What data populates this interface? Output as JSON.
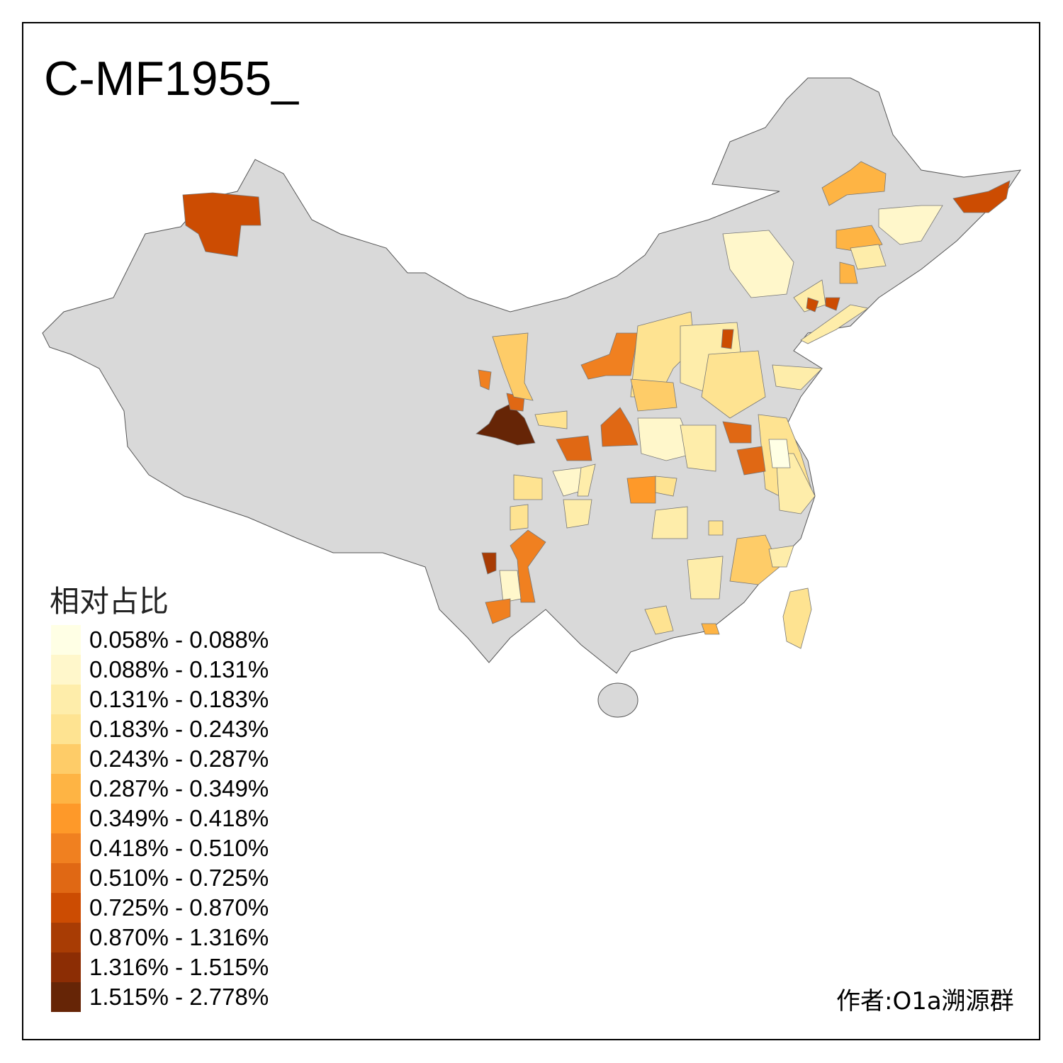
{
  "title": "C-MF1955_",
  "legend": {
    "title": "相对占比",
    "classes": [
      {
        "label": "0.058% - 0.088%",
        "color": "#FFFFE5"
      },
      {
        "label": "0.088% - 0.131%",
        "color": "#FFF7CB"
      },
      {
        "label": "0.131% - 0.183%",
        "color": "#FEEDAA"
      },
      {
        "label": "0.183% - 0.243%",
        "color": "#FEE391"
      },
      {
        "label": "0.243% - 0.287%",
        "color": "#FECC68"
      },
      {
        "label": "0.287% - 0.349%",
        "color": "#FEB444"
      },
      {
        "label": "0.349% - 0.418%",
        "color": "#FE9929"
      },
      {
        "label": "0.418% - 0.510%",
        "color": "#F08020"
      },
      {
        "label": "0.510% - 0.725%",
        "color": "#E06814"
      },
      {
        "label": "0.725% - 0.870%",
        "color": "#CC4C02"
      },
      {
        "label": "0.870% - 1.316%",
        "color": "#A83C04"
      },
      {
        "label": "1.316% - 1.515%",
        "color": "#8C2D04"
      },
      {
        "label": "1.515% - 2.778%",
        "color": "#662506"
      }
    ]
  },
  "no_data_color": "#D9D9D9",
  "author": "作者:O1a溯源群"
}
